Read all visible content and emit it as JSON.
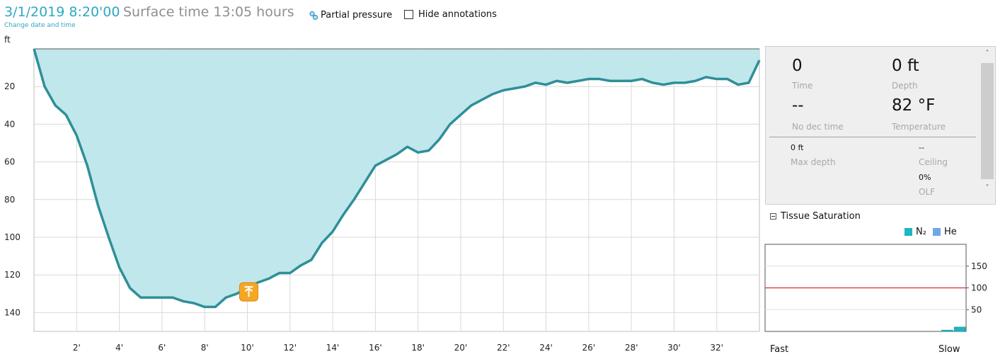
{
  "header": {
    "datetime": "3/1/2019 8:20'00",
    "surface_time": "Surface time 13:05 hours",
    "change_link": "Change date and time",
    "partial_pressure": "Partial pressure",
    "hide_annotations": "Hide annotations",
    "hide_annotations_checked": false
  },
  "dive_chart": {
    "type": "area",
    "y_unit_label": "ft",
    "x_ticks": [
      "2'",
      "4'",
      "6'",
      "8'",
      "10'",
      "12'",
      "14'",
      "16'",
      "18'",
      "20'",
      "22'",
      "24'",
      "26'",
      "28'",
      "30'",
      "32'"
    ],
    "y_ticks": [
      "20",
      "40",
      "60",
      "80",
      "100",
      "120",
      "140"
    ],
    "xlim": [
      0,
      34
    ],
    "ylim": [
      0,
      150
    ],
    "y_inverted": true,
    "grid": true,
    "series": [
      {
        "x": [
          0,
          0.5,
          1,
          1.5,
          2,
          2.5,
          3,
          3.5,
          4,
          4.5,
          5,
          5.5,
          6,
          6.5,
          7,
          7.5,
          8,
          8.5,
          9,
          9.5,
          10,
          10.5,
          11,
          11.5,
          12,
          12.5,
          13,
          13.5,
          14,
          14.5,
          15,
          15.5,
          16,
          16.5,
          17,
          17.5,
          18,
          18.5,
          19,
          19.5,
          20,
          20.5,
          21,
          21.5,
          22,
          22.5,
          23,
          23.5,
          24,
          24.5,
          25,
          25.5,
          26,
          26.5,
          27,
          27.5,
          28,
          28.5,
          29,
          29.5,
          30,
          30.5,
          31,
          31.5,
          32,
          32.5,
          33,
          33.5,
          34
        ],
        "y": [
          0,
          20,
          30,
          35,
          46,
          62,
          83,
          100,
          116,
          127,
          132,
          132,
          132,
          132,
          134,
          135,
          137,
          137,
          132,
          130,
          127,
          124,
          122,
          119,
          119,
          115,
          112,
          103,
          97,
          88,
          80,
          71,
          62,
          59,
          56,
          52,
          55,
          54,
          48,
          40,
          35,
          30,
          27,
          24,
          22,
          21,
          20,
          18,
          19,
          17,
          18,
          17,
          16,
          16,
          17,
          17,
          17,
          16,
          18,
          19,
          18,
          18,
          17,
          15,
          16,
          16,
          19,
          18,
          6
        ]
      }
    ],
    "colors": {
      "fill": "#bde6ea",
      "line": "#2e8f98"
    },
    "annotations": [
      {
        "type": "ascent-marker",
        "x": 10,
        "y": 126
      }
    ]
  },
  "info_panel": {
    "time_value": "0",
    "time_label": "Time",
    "depth_value": "0 ft",
    "depth_label": "Depth",
    "nodec_value": "--",
    "nodec_label": "No dec time",
    "temp_value": "82 °F",
    "temp_label": "Temperature",
    "maxdepth_value": "0 ft",
    "maxdepth_label": "Max depth",
    "ceiling_value": "--",
    "ceiling_label": "Ceiling",
    "olf_value": "0%",
    "olf_label": "OLF"
  },
  "tissue": {
    "title": "Tissue Saturation",
    "legend": [
      {
        "name": "N₂",
        "color": "#1fb5c2"
      },
      {
        "name": "He",
        "color": "#6ea9e6"
      }
    ],
    "fast_label": "Fast",
    "slow_label": "Slow",
    "chart_data": {
      "type": "bar",
      "y_ticks": [
        "150",
        "100",
        "50"
      ],
      "ylim": [
        0,
        200
      ],
      "reference_line": {
        "value": 100,
        "color": "#d62f2f"
      },
      "compartment_count": 16,
      "n2": [
        0,
        0,
        0,
        0,
        0,
        0,
        0,
        0,
        0,
        0,
        0,
        0,
        0,
        0,
        3,
        10
      ],
      "he": [
        0,
        0,
        0,
        0,
        0,
        0,
        0,
        0,
        0,
        0,
        0,
        0,
        0,
        0,
        0,
        0
      ]
    }
  }
}
